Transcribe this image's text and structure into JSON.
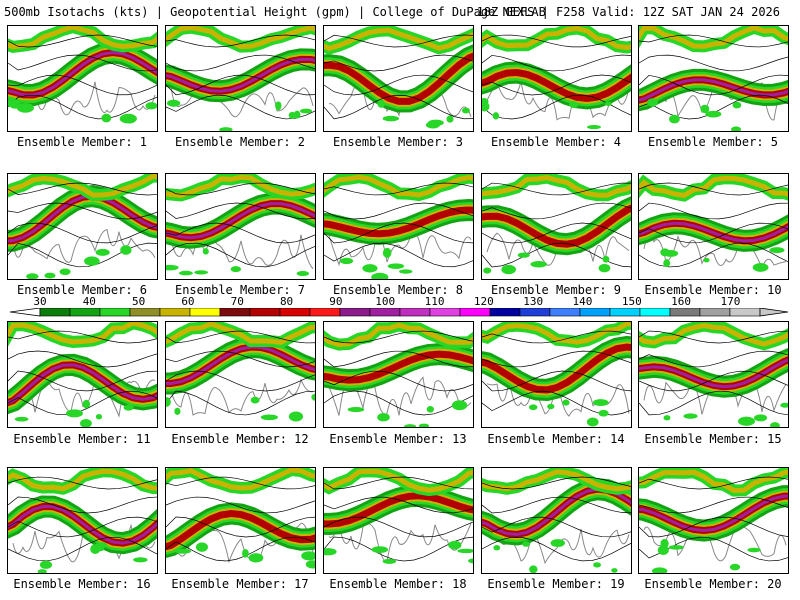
{
  "header": {
    "left": "500mb Isotachs (kts) | Geopotential Height (gpm) | College of DuPage NEXLAB",
    "right": "18Z GEFS | F258 Valid: 12Z SAT JAN 24 2026"
  },
  "members": [
    "Ensemble Member: 1",
    "Ensemble Member: 2",
    "Ensemble Member: 3",
    "Ensemble Member: 4",
    "Ensemble Member: 5",
    "Ensemble Member: 6",
    "Ensemble Member: 7",
    "Ensemble Member: 8",
    "Ensemble Member: 9",
    "Ensemble Member: 10",
    "Ensemble Member: 11",
    "Ensemble Member: 12",
    "Ensemble Member: 13",
    "Ensemble Member: 14",
    "Ensemble Member: 15",
    "Ensemble Member: 16",
    "Ensemble Member: 17",
    "Ensemble Member: 18",
    "Ensemble Member: 19",
    "Ensemble Member: 20"
  ],
  "colorbar": {
    "labels": [
      "30",
      "40",
      "50",
      "60",
      "70",
      "80",
      "90",
      "100",
      "110",
      "120",
      "130",
      "140",
      "150",
      "160",
      "170"
    ],
    "colors": [
      "#0b7d0b",
      "#13a313",
      "#27d627",
      "#8f8f2a",
      "#c8b400",
      "#ffff00",
      "#7d0b0b",
      "#b30000",
      "#d60000",
      "#ff1a1a",
      "#8b1a8b",
      "#a020a0",
      "#c030c0",
      "#e040e0",
      "#ff00ff",
      "#0000a0",
      "#1f3fd6",
      "#3f7fff",
      "#00a0ff",
      "#00d0ff",
      "#00ffff",
      "#7a7a7a",
      "#a0a0a0",
      "#c8c8c8"
    ]
  }
}
